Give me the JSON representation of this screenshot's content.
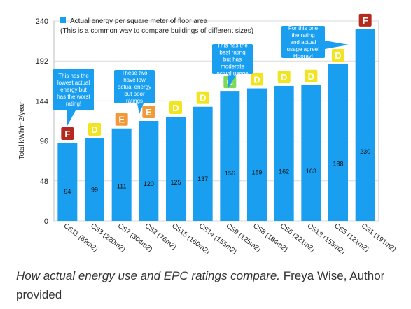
{
  "chart_data": {
    "type": "bar",
    "ylabel": "Total kWh/m2/year",
    "xlabel": "",
    "ylim": [
      0,
      240
    ],
    "yticks": [
      0,
      48,
      96,
      144,
      192,
      240
    ],
    "grid": true,
    "legend": {
      "placement": "top-left",
      "label": "Actual energy per square meter of floor area",
      "subtitle": "(This is a common way to compare buildings of different sizes)"
    },
    "categories": [
      "CS11 (69m2)",
      "CS3 (220m2)",
      "CS7 (304m2)",
      "CS2 (76m2)",
      "CS15 (160m2)",
      "CS14 (155m2)",
      "CS9 (125m2)",
      "CS8 (184m2)",
      "CS6 (221m2)",
      "CS13 (155m2)",
      "CS5 (121m2)",
      "CS1 (191m2)"
    ],
    "series": [
      {
        "name": "Actual energy per square meter of floor area",
        "values": [
          94,
          99,
          111,
          120,
          125,
          137,
          156,
          159,
          162,
          163,
          188,
          230
        ]
      }
    ],
    "ratings": [
      "F",
      "D",
      "E",
      "E",
      "D",
      "D",
      "C",
      "D",
      "D",
      "D",
      "D",
      "F"
    ],
    "rating_colors": {
      "C": "#7ed957",
      "D": "#f2e421",
      "E": "#f29a3a",
      "F": "#b52a1f"
    },
    "bar_color": "#1a9ff0",
    "annotations": [
      {
        "text": "This has the lowest actual energy but has the worst rating!",
        "target": 0
      },
      {
        "text": "These two have low actual energy but poor ratings",
        "target": 2
      },
      {
        "text": "This has the best rating but has moderate actual usage",
        "target": 6
      },
      {
        "text": "For this one the rating and actual usage agree! Hooray!",
        "target": 11
      }
    ]
  },
  "caption": {
    "italic": "How actual energy use and EPC ratings compare.",
    "credit": "Freya Wise, Author provided"
  }
}
